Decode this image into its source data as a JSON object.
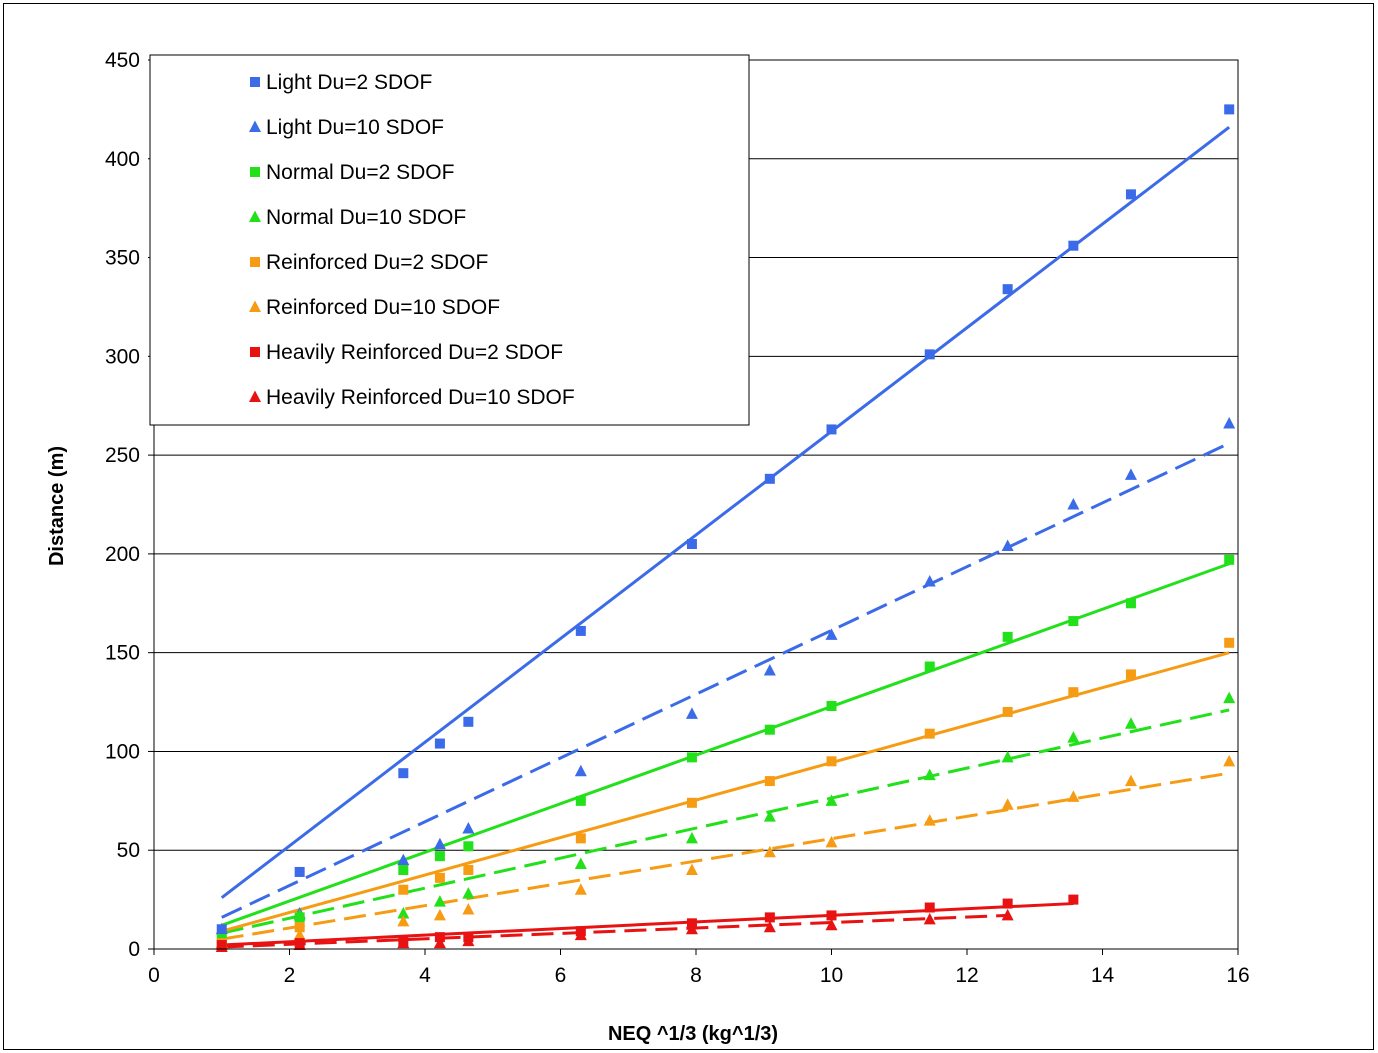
{
  "chart_data": {
    "type": "scatter",
    "xlabel": "NEQ ^1/3 (kg^1/3)",
    "ylabel": "Distance (m)",
    "xlim": [
      0,
      16
    ],
    "ylim": [
      0,
      450
    ],
    "x_ticks": [
      0,
      2,
      4,
      6,
      8,
      10,
      12,
      14,
      16
    ],
    "y_ticks": [
      0,
      50,
      100,
      150,
      200,
      250,
      300,
      350,
      400,
      450
    ],
    "grid": "horizontal",
    "legend_position": "top-left",
    "series": [
      {
        "name": "Light Du=2 SDOF",
        "color": "#3b6be8",
        "marker": "square",
        "trend": "solid",
        "x": [
          1,
          2.15,
          3.68,
          4.22,
          4.64,
          6.3,
          7.94,
          9.09,
          10,
          11.45,
          12.6,
          13.57,
          14.42,
          15.87
        ],
        "y": [
          10,
          39,
          89,
          104,
          115,
          161,
          205,
          238,
          263,
          301,
          334,
          356,
          382,
          425
        ],
        "trend_line": [
          [
            1,
            26
          ],
          [
            15.87,
            416
          ]
        ]
      },
      {
        "name": "Light Du=10 SDOF",
        "color": "#3b6be8",
        "marker": "triangle",
        "trend": "dashed",
        "x": [
          1,
          2.15,
          3.68,
          4.22,
          4.64,
          6.3,
          7.94,
          9.09,
          10,
          11.45,
          12.6,
          13.57,
          14.42,
          15.87
        ],
        "y": [
          10,
          18,
          45,
          53,
          61,
          90,
          119,
          141,
          159,
          186,
          204,
          225,
          240,
          266
        ],
        "trend_line": [
          [
            1,
            16
          ],
          [
            15.87,
            256
          ]
        ]
      },
      {
        "name": "Normal Du=2 SDOF",
        "color": "#22e01a",
        "marker": "square",
        "trend": "solid",
        "x": [
          1,
          2.15,
          3.68,
          4.22,
          4.64,
          6.3,
          7.94,
          9.09,
          10,
          11.45,
          12.6,
          13.57,
          14.42,
          15.87
        ],
        "y": [
          5,
          16,
          40,
          47,
          52,
          75,
          97,
          111,
          123,
          143,
          158,
          166,
          175,
          197
        ],
        "trend_line": [
          [
            1,
            12
          ],
          [
            15.87,
            195
          ]
        ]
      },
      {
        "name": "Normal Du=10 SDOF",
        "color": "#22e01a",
        "marker": "triangle",
        "trend": "dashed",
        "x": [
          1,
          2.15,
          3.68,
          4.22,
          4.64,
          6.3,
          7.94,
          9.09,
          10,
          11.45,
          12.6,
          13.57,
          14.42,
          15.87
        ],
        "y": [
          3,
          17,
          18,
          24,
          28,
          43,
          56,
          67,
          75,
          88,
          97,
          107,
          114,
          127
        ],
        "trend_line": [
          [
            1,
            8
          ],
          [
            15.87,
            121
          ]
        ]
      },
      {
        "name": "Reinforced Du=2 SDOF",
        "color": "#f59c14",
        "marker": "square",
        "trend": "solid",
        "x": [
          1,
          2.15,
          3.68,
          4.22,
          4.64,
          6.3,
          7.94,
          9.09,
          10,
          11.45,
          12.6,
          13.57,
          14.42,
          15.87
        ],
        "y": [
          3,
          11,
          30,
          36,
          40,
          56,
          74,
          85,
          95,
          109,
          120,
          130,
          139,
          155
        ],
        "trend_line": [
          [
            1,
            9
          ],
          [
            15.87,
            150
          ]
        ]
      },
      {
        "name": "Reinforced Du=10 SDOF",
        "color": "#f59c14",
        "marker": "triangle",
        "trend": "dashed",
        "x": [
          1,
          2.15,
          3.68,
          4.22,
          4.64,
          6.3,
          7.94,
          9.09,
          10,
          11.45,
          12.6,
          13.57,
          14.42,
          15.87
        ],
        "y": [
          2,
          7,
          14,
          17,
          20,
          30,
          40,
          49,
          54,
          65,
          73,
          77,
          85,
          95
        ],
        "trend_line": [
          [
            1,
            5
          ],
          [
            15.87,
            89
          ]
        ]
      },
      {
        "name": "Heavily Reinforced Du=2 SDOF",
        "color": "#e81212",
        "marker": "square",
        "trend": "solid",
        "x": [
          1,
          2.15,
          3.68,
          4.22,
          4.64,
          6.3,
          7.94,
          9.09,
          10,
          11.45,
          12.6,
          13.57
        ],
        "y": [
          2,
          3,
          4,
          6,
          6,
          9,
          13,
          16,
          17,
          21,
          23,
          25
        ],
        "trend_line": [
          [
            1,
            2
          ],
          [
            13.57,
            23
          ]
        ]
      },
      {
        "name": "Heavily Reinforced Du=10 SDOF",
        "color": "#e81212",
        "marker": "triangle",
        "trend": "dashed",
        "x": [
          1,
          2.15,
          3.68,
          4.22,
          4.64,
          6.3,
          7.94,
          9.09,
          10,
          11.45,
          12.6
        ],
        "y": [
          1,
          2,
          3,
          3,
          4,
          7,
          10,
          11,
          12,
          15,
          17
        ],
        "trend_line": [
          [
            1,
            1
          ],
          [
            12.6,
            17
          ]
        ]
      }
    ]
  }
}
